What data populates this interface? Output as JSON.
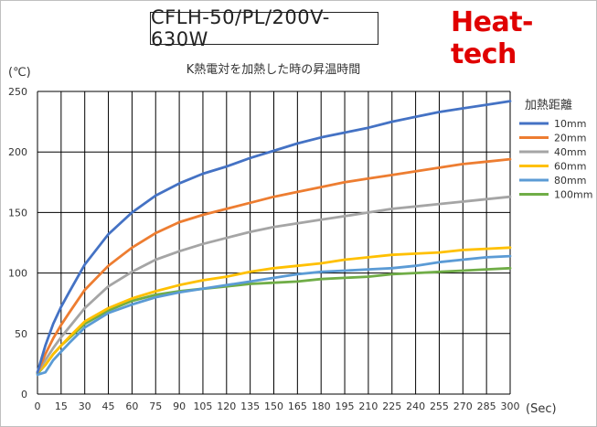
{
  "header": {
    "model": "CFLH-50/PL/200V-630W",
    "brand": "Heat-tech"
  },
  "chart_data": {
    "type": "line",
    "title": "K熱電対を加熱した時の昇温時間",
    "xlabel": "(Sec)",
    "ylabel": "(℃)",
    "xlim": [
      0,
      300
    ],
    "ylim": [
      0,
      250
    ],
    "xticks": [
      0,
      15,
      30,
      45,
      60,
      75,
      90,
      105,
      120,
      135,
      150,
      165,
      180,
      195,
      210,
      225,
      240,
      255,
      270,
      285,
      300
    ],
    "yticks": [
      0,
      50,
      100,
      150,
      200,
      250
    ],
    "grid": true,
    "legend_title": "加熱距離",
    "legend_position": "right",
    "x": [
      0,
      5,
      10,
      15,
      20,
      30,
      45,
      60,
      75,
      90,
      105,
      120,
      135,
      150,
      165,
      180,
      195,
      210,
      225,
      240,
      255,
      270,
      285,
      300
    ],
    "series": [
      {
        "name": "10mm",
        "color": "#4472c4",
        "values": [
          18,
          40,
          58,
          72,
          84,
          107,
          132,
          150,
          164,
          174,
          182,
          188,
          195,
          201,
          207,
          212,
          216,
          220,
          225,
          229,
          233,
          236,
          239,
          242
        ]
      },
      {
        "name": "20mm",
        "color": "#ed7d31",
        "values": [
          18,
          33,
          46,
          57,
          67,
          86,
          106,
          121,
          133,
          142,
          148,
          153,
          158,
          163,
          167,
          171,
          175,
          178,
          181,
          184,
          187,
          190,
          192,
          194
        ]
      },
      {
        "name": "40mm",
        "color": "#a5a5a5",
        "values": [
          18,
          28,
          38,
          47,
          55,
          71,
          89,
          101,
          111,
          118,
          124,
          129,
          134,
          138,
          141,
          144,
          147,
          150,
          153,
          155,
          157,
          159,
          161,
          163
        ]
      },
      {
        "name": "60mm",
        "color": "#ffc000",
        "values": [
          18,
          24,
          33,
          40,
          47,
          60,
          71,
          79,
          85,
          90,
          94,
          97,
          101,
          104,
          106,
          108,
          111,
          113,
          115,
          116,
          117,
          119,
          120,
          121
        ]
      },
      {
        "name": "80mm",
        "color": "#5b9bd5",
        "values": [
          16,
          18,
          28,
          35,
          42,
          55,
          67,
          74,
          80,
          84,
          87,
          90,
          93,
          96,
          99,
          101,
          102,
          103,
          104,
          106,
          109,
          111,
          113,
          114
        ]
      },
      {
        "name": "100mm",
        "color": "#70ad47",
        "values": [
          17,
          24,
          33,
          40,
          46,
          58,
          69,
          77,
          82,
          85,
          87,
          89,
          91,
          92,
          93,
          95,
          96,
          97,
          99,
          100,
          101,
          102,
          103,
          104
        ]
      }
    ]
  }
}
